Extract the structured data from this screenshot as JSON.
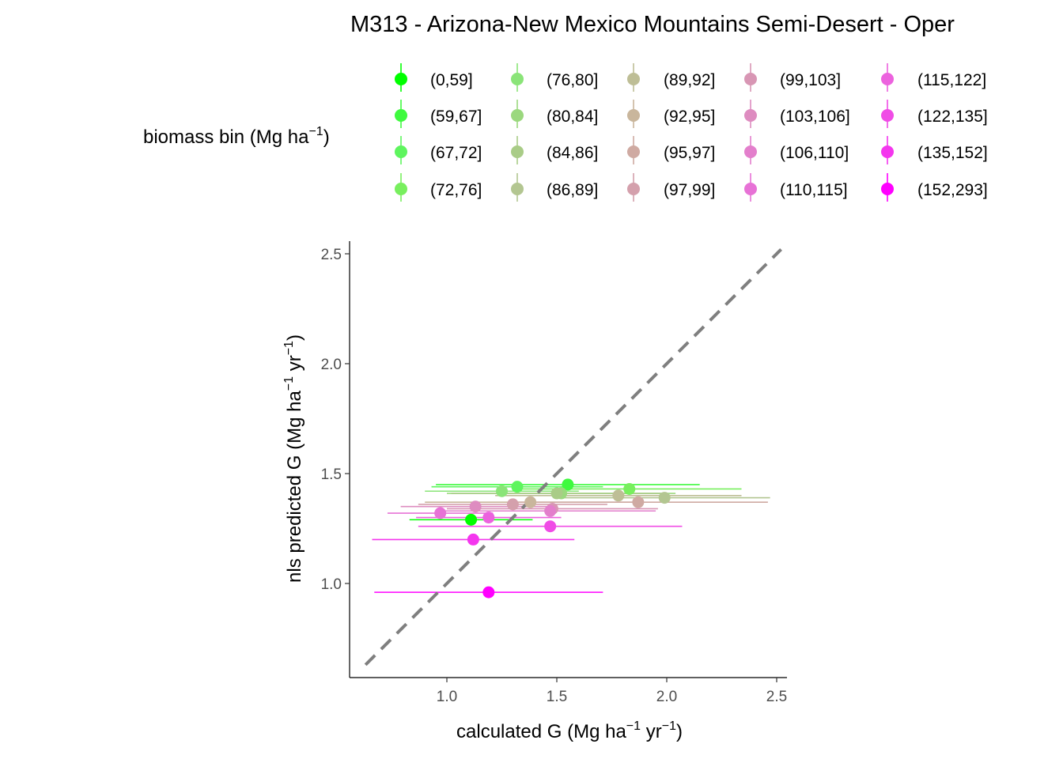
{
  "chart_data": {
    "type": "scatter",
    "title": "M313 - Arizona-New Mexico Mountains Semi-Desert - Oper",
    "xlabel": {
      "base": "calculated G (Mg ha",
      "sup1": "−1",
      "mid": " yr",
      "sup2": "−1",
      "end": ")"
    },
    "ylabel": {
      "base": "nls predicted G (Mg ha",
      "sup1": "−1",
      "mid": " yr",
      "sup2": "−1",
      "end": ")"
    },
    "xlim": [
      0.6,
      2.55
    ],
    "ylim": [
      0.62,
      2.55
    ],
    "x_ticks": [
      1.0,
      1.5,
      2.0,
      2.5
    ],
    "x_tick_labels": [
      "1.0",
      "1.5",
      "2.0",
      "2.5"
    ],
    "y_ticks": [
      1.0,
      1.5,
      2.0,
      2.5
    ],
    "y_tick_labels": [
      "1.0",
      "1.5",
      "2.0",
      "2.5"
    ],
    "grid": false,
    "reference_line": {
      "type": "identity",
      "style": "dashed",
      "color": "#7f7f7f"
    },
    "legend": {
      "title": {
        "base": "biomass bin (Mg ha",
        "sup": "−1",
        "end": ")"
      },
      "placement": "top",
      "columns": 5
    },
    "series": [
      {
        "name": "(0,59]",
        "color": "#00FF00",
        "x": 1.11,
        "y": 1.29,
        "xmin": 0.83,
        "xmax": 1.39
      },
      {
        "name": "(59,67]",
        "color": "#3FFA3F",
        "x": 1.55,
        "y": 1.45,
        "xmin": 0.95,
        "xmax": 2.15
      },
      {
        "name": "(67,72]",
        "color": "#5EF55E",
        "x": 1.32,
        "y": 1.44,
        "xmin": 0.93,
        "xmax": 1.71
      },
      {
        "name": "(72,76]",
        "color": "#78EF5E",
        "x": 1.83,
        "y": 1.43,
        "xmin": 1.32,
        "xmax": 2.34
      },
      {
        "name": "(76,80]",
        "color": "#8AE478",
        "x": 1.25,
        "y": 1.42,
        "xmin": 0.9,
        "xmax": 1.6
      },
      {
        "name": "(80,84]",
        "color": "#9BD87E",
        "x": 1.52,
        "y": 1.41,
        "xmin": 1.0,
        "xmax": 2.04
      },
      {
        "name": "(84,86]",
        "color": "#A9CC87",
        "x": 1.5,
        "y": 1.41,
        "xmin": 1.02,
        "xmax": 1.98
      },
      {
        "name": "(86,89]",
        "color": "#B3C691",
        "x": 1.99,
        "y": 1.39,
        "xmin": 1.51,
        "xmax": 2.47
      },
      {
        "name": "(89,92]",
        "color": "#BEBE96",
        "x": 1.78,
        "y": 1.4,
        "xmin": 1.22,
        "xmax": 2.34
      },
      {
        "name": "(92,95]",
        "color": "#C9B69C",
        "x": 1.38,
        "y": 1.37,
        "xmin": 0.9,
        "xmax": 1.86
      },
      {
        "name": "(95,97]",
        "color": "#CFAAA2",
        "x": 1.87,
        "y": 1.37,
        "xmin": 1.28,
        "xmax": 2.46
      },
      {
        "name": "(97,99]",
        "color": "#D4A0AC",
        "x": 1.3,
        "y": 1.36,
        "xmin": 0.87,
        "xmax": 1.73
      },
      {
        "name": "(99,103]",
        "color": "#D896B4",
        "x": 1.48,
        "y": 1.34,
        "xmin": 1.0,
        "xmax": 1.96
      },
      {
        "name": "(103,106]",
        "color": "#DE8CC0",
        "x": 1.13,
        "y": 1.35,
        "xmin": 0.79,
        "xmax": 1.47
      },
      {
        "name": "(106,110]",
        "color": "#E37FCC",
        "x": 1.47,
        "y": 1.33,
        "xmin": 0.99,
        "xmax": 1.95
      },
      {
        "name": "(110,115]",
        "color": "#E772D6",
        "x": 0.97,
        "y": 1.32,
        "xmin": 0.73,
        "xmax": 1.21
      },
      {
        "name": "(115,122]",
        "color": "#EC62DE",
        "x": 1.19,
        "y": 1.3,
        "xmin": 0.86,
        "xmax": 1.52
      },
      {
        "name": "(122,135]",
        "color": "#F04CE6",
        "x": 1.47,
        "y": 1.26,
        "xmin": 0.87,
        "xmax": 2.07
      },
      {
        "name": "(135,152]",
        "color": "#F436EE",
        "x": 1.12,
        "y": 1.2,
        "xmin": 0.66,
        "xmax": 1.58
      },
      {
        "name": "(152,293]",
        "color": "#FF00FF",
        "x": 1.19,
        "y": 0.96,
        "xmin": 0.67,
        "xmax": 1.71
      }
    ]
  }
}
